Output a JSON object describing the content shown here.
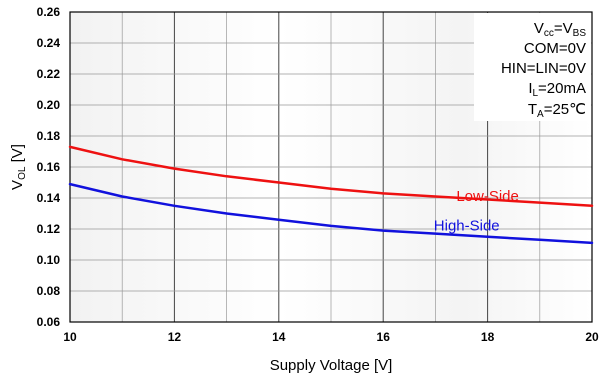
{
  "chart_data": {
    "type": "line",
    "xlabel": "Supply Voltage [V]",
    "ylabel": {
      "main": "V",
      "sub": "OL",
      "unit": " [V]"
    },
    "xlim": [
      10,
      20
    ],
    "ylim": [
      0.06,
      0.26
    ],
    "xticks": [
      "10",
      "12",
      "14",
      "16",
      "18",
      "20"
    ],
    "yticks": [
      "0.06",
      "0.08",
      "0.10",
      "0.12",
      "0.14",
      "0.16",
      "0.18",
      "0.20",
      "0.22",
      "0.24",
      "0.26"
    ],
    "grid": true,
    "conditions": [
      {
        "id": "vcc",
        "text": "V",
        "sub": "cc",
        "text2": "=V",
        "sub2": "BS"
      },
      {
        "id": "com",
        "text": "COM=0V"
      },
      {
        "id": "hin",
        "text": "HIN=LIN=0V"
      },
      {
        "id": "il",
        "text": "I",
        "sub": "L",
        "text2": "=20mA"
      },
      {
        "id": "ta",
        "text": "T",
        "sub": "A",
        "text2": "=25℃"
      }
    ],
    "series": [
      {
        "name": "Low-Side",
        "color": "#ee1111",
        "label_pos": [
          18.0,
          0.138
        ],
        "x": [
          10,
          11,
          12,
          13,
          14,
          15,
          16,
          17,
          18,
          19,
          20
        ],
        "y": [
          0.173,
          0.165,
          0.159,
          0.154,
          0.15,
          0.146,
          0.143,
          0.141,
          0.139,
          0.137,
          0.135
        ]
      },
      {
        "name": "High-Side",
        "color": "#1111dd",
        "label_pos": [
          17.6,
          0.119
        ],
        "x": [
          10,
          11,
          12,
          13,
          14,
          15,
          16,
          17,
          18,
          19,
          20
        ],
        "y": [
          0.149,
          0.141,
          0.135,
          0.13,
          0.126,
          0.122,
          0.119,
          0.117,
          0.115,
          0.113,
          0.111
        ]
      }
    ]
  }
}
